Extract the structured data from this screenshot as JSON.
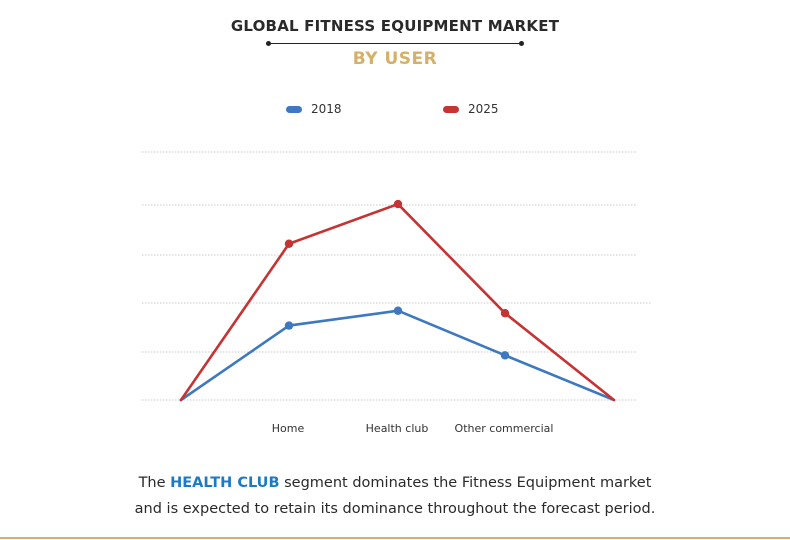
{
  "header": {
    "title": "GLOBAL FITNESS EQUIPMENT MARKET",
    "subtitle": "BY USER"
  },
  "chart_data": {
    "type": "line",
    "categories": [
      "",
      "Home",
      "Health club",
      "Other commercial",
      ""
    ],
    "series": [
      {
        "name": "2018",
        "color": "#3d78c0",
        "values": [
          0,
          30,
          36,
          18,
          0
        ]
      },
      {
        "name": "2025",
        "color": "#c73232",
        "values": [
          0,
          63,
          79,
          35,
          0
        ]
      }
    ],
    "ylim": [
      0,
      100
    ],
    "grid": true,
    "legend": "top-center",
    "xlabel": "",
    "ylabel": ""
  },
  "caption": {
    "prefix": "The ",
    "highlight": "HEALTH CLUB",
    "line1_rest": " segment dominates the Fitness Equipment market",
    "line2": "and is expected to retain its dominance throughout the forecast period."
  }
}
